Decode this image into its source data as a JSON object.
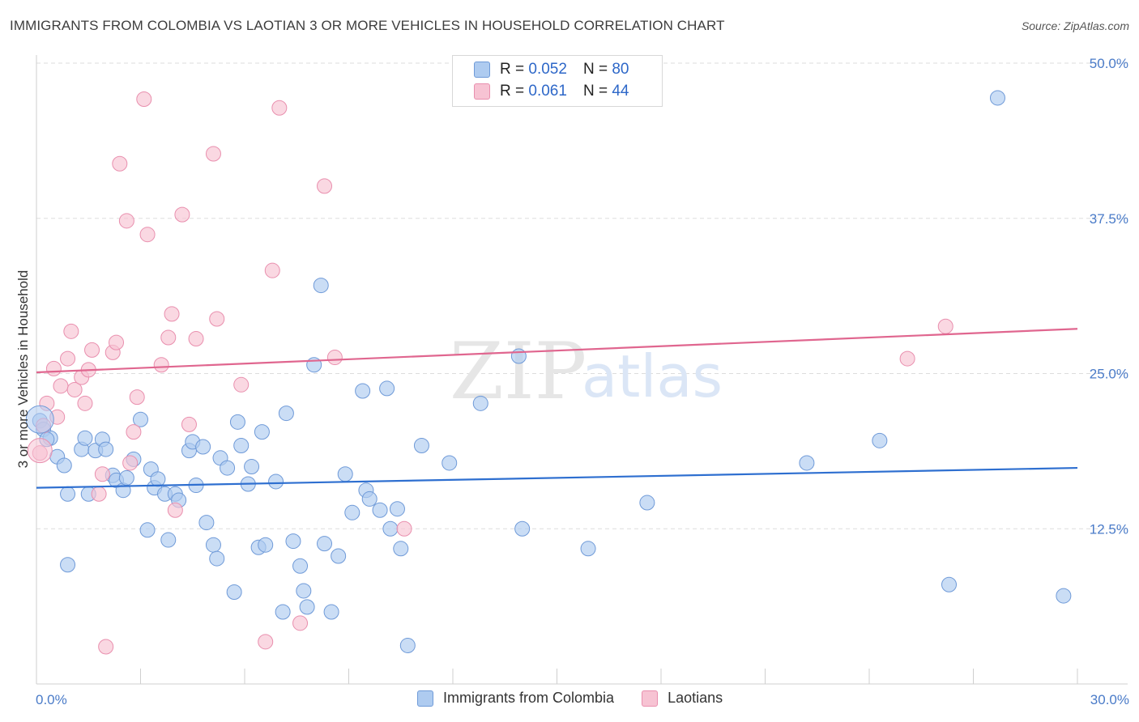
{
  "header": {
    "title": "IMMIGRANTS FROM COLOMBIA VS LAOTIAN 3 OR MORE VEHICLES IN HOUSEHOLD CORRELATION CHART",
    "source": "Source: ZipAtlas.com"
  },
  "legend": {
    "series1": {
      "r_label": "R =",
      "r_value": "0.052",
      "n_label": "N =",
      "n_value": "80"
    },
    "series2": {
      "r_label": "R =",
      "r_value": "0.061",
      "n_label": "N =",
      "n_value": "44"
    }
  },
  "watermark": {
    "zip": "ZIP",
    "atlas": "atlas"
  },
  "colors": {
    "blue_fill": "#aecbf0",
    "blue_stroke": "#6f9ad8",
    "blue_line": "#2e6fd0",
    "pink_fill": "#f7c3d3",
    "pink_stroke": "#e98fae",
    "pink_line": "#e0668f"
  },
  "chart_data": {
    "type": "scatter",
    "title": "IMMIGRANTS FROM COLOMBIA VS LAOTIAN 3 OR MORE VEHICLES IN HOUSEHOLD CORRELATION CHART",
    "xlabel": "",
    "ylabel": "3 or more Vehicles in Household",
    "xlim": [
      0,
      30
    ],
    "ylim": [
      0,
      50
    ],
    "x_tick_labels": [
      "0.0%",
      "30.0%"
    ],
    "y_ticks": [
      12.5,
      25.0,
      37.5,
      50.0
    ],
    "y_tick_labels": [
      "12.5%",
      "25.0%",
      "37.5%",
      "50.0%"
    ],
    "grid": true,
    "series": [
      {
        "name": "Immigrants from Colombia",
        "color": "#aecbf0",
        "trend": {
          "x": [
            0,
            30
          ],
          "y": [
            15.8,
            17.4
          ]
        },
        "points": [
          [
            0.1,
            21.2
          ],
          [
            0.2,
            20.5
          ],
          [
            0.4,
            19.8
          ],
          [
            0.6,
            18.3
          ],
          [
            0.8,
            17.6
          ],
          [
            0.9,
            15.3
          ],
          [
            0.9,
            9.6
          ],
          [
            1.3,
            18.9
          ],
          [
            1.4,
            19.8
          ],
          [
            1.5,
            15.3
          ],
          [
            1.7,
            18.8
          ],
          [
            1.9,
            19.7
          ],
          [
            2.0,
            18.9
          ],
          [
            2.2,
            16.8
          ],
          [
            2.3,
            16.4
          ],
          [
            2.5,
            15.6
          ],
          [
            2.6,
            16.6
          ],
          [
            2.8,
            18.1
          ],
          [
            3.0,
            21.3
          ],
          [
            3.2,
            12.4
          ],
          [
            3.3,
            17.3
          ],
          [
            3.4,
            15.8
          ],
          [
            3.5,
            16.5
          ],
          [
            3.7,
            15.3
          ],
          [
            3.8,
            11.6
          ],
          [
            4.0,
            15.3
          ],
          [
            4.1,
            14.8
          ],
          [
            4.4,
            18.8
          ],
          [
            4.5,
            19.5
          ],
          [
            4.6,
            16.0
          ],
          [
            4.8,
            19.1
          ],
          [
            4.9,
            13.0
          ],
          [
            5.1,
            11.2
          ],
          [
            5.2,
            10.1
          ],
          [
            5.3,
            18.2
          ],
          [
            5.5,
            17.4
          ],
          [
            5.7,
            7.4
          ],
          [
            5.8,
            21.1
          ],
          [
            5.9,
            19.2
          ],
          [
            6.1,
            16.1
          ],
          [
            6.2,
            17.5
          ],
          [
            6.4,
            11.0
          ],
          [
            6.5,
            20.3
          ],
          [
            6.6,
            11.2
          ],
          [
            6.9,
            16.3
          ],
          [
            7.1,
            5.8
          ],
          [
            7.2,
            21.8
          ],
          [
            7.4,
            11.5
          ],
          [
            7.6,
            9.5
          ],
          [
            7.7,
            7.5
          ],
          [
            7.8,
            6.2
          ],
          [
            8.0,
            25.7
          ],
          [
            8.2,
            32.1
          ],
          [
            8.3,
            11.3
          ],
          [
            8.5,
            5.8
          ],
          [
            8.7,
            10.3
          ],
          [
            8.9,
            16.9
          ],
          [
            9.1,
            13.8
          ],
          [
            9.4,
            23.6
          ],
          [
            9.5,
            15.6
          ],
          [
            9.6,
            14.9
          ],
          [
            9.9,
            14.0
          ],
          [
            10.1,
            23.8
          ],
          [
            10.2,
            12.5
          ],
          [
            10.4,
            14.1
          ],
          [
            10.5,
            10.9
          ],
          [
            10.7,
            3.1
          ],
          [
            11.1,
            19.2
          ],
          [
            11.9,
            17.8
          ],
          [
            12.8,
            22.6
          ],
          [
            13.9,
            26.4
          ],
          [
            14.0,
            12.5
          ],
          [
            15.9,
            10.9
          ],
          [
            17.6,
            14.6
          ],
          [
            22.2,
            17.8
          ],
          [
            24.3,
            19.6
          ],
          [
            26.3,
            8.0
          ],
          [
            27.7,
            47.2
          ],
          [
            29.6,
            7.1
          ],
          [
            0.3,
            19.7
          ]
        ]
      },
      {
        "name": "Laotians",
        "color": "#f7c3d3",
        "trend": {
          "x": [
            0,
            30
          ],
          "y": [
            25.1,
            28.6
          ]
        },
        "points": [
          [
            0.1,
            18.6
          ],
          [
            0.2,
            20.8
          ],
          [
            0.3,
            22.6
          ],
          [
            0.5,
            25.4
          ],
          [
            0.6,
            21.5
          ],
          [
            0.7,
            24.0
          ],
          [
            0.9,
            26.2
          ],
          [
            1.0,
            28.4
          ],
          [
            1.1,
            23.7
          ],
          [
            1.3,
            24.7
          ],
          [
            1.4,
            22.6
          ],
          [
            1.5,
            25.3
          ],
          [
            1.6,
            26.9
          ],
          [
            1.8,
            15.3
          ],
          [
            1.9,
            16.9
          ],
          [
            2.0,
            3.0
          ],
          [
            2.2,
            26.7
          ],
          [
            2.3,
            27.5
          ],
          [
            2.4,
            41.9
          ],
          [
            2.6,
            37.3
          ],
          [
            2.7,
            17.8
          ],
          [
            2.8,
            20.3
          ],
          [
            2.9,
            23.1
          ],
          [
            3.1,
            47.1
          ],
          [
            3.2,
            36.2
          ],
          [
            3.6,
            25.7
          ],
          [
            3.8,
            27.9
          ],
          [
            3.9,
            29.8
          ],
          [
            4.0,
            14.0
          ],
          [
            4.2,
            37.8
          ],
          [
            4.4,
            20.9
          ],
          [
            4.6,
            27.8
          ],
          [
            5.1,
            42.7
          ],
          [
            5.2,
            29.4
          ],
          [
            5.9,
            24.1
          ],
          [
            6.6,
            3.4
          ],
          [
            6.8,
            33.3
          ],
          [
            7.0,
            46.4
          ],
          [
            7.6,
            4.9
          ],
          [
            8.3,
            40.1
          ],
          [
            8.6,
            26.3
          ],
          [
            10.6,
            12.5
          ],
          [
            25.1,
            26.2
          ],
          [
            26.2,
            28.8
          ]
        ]
      }
    ]
  },
  "bottom_legend": {
    "item1": "Immigrants from Colombia",
    "item2": "Laotians"
  }
}
